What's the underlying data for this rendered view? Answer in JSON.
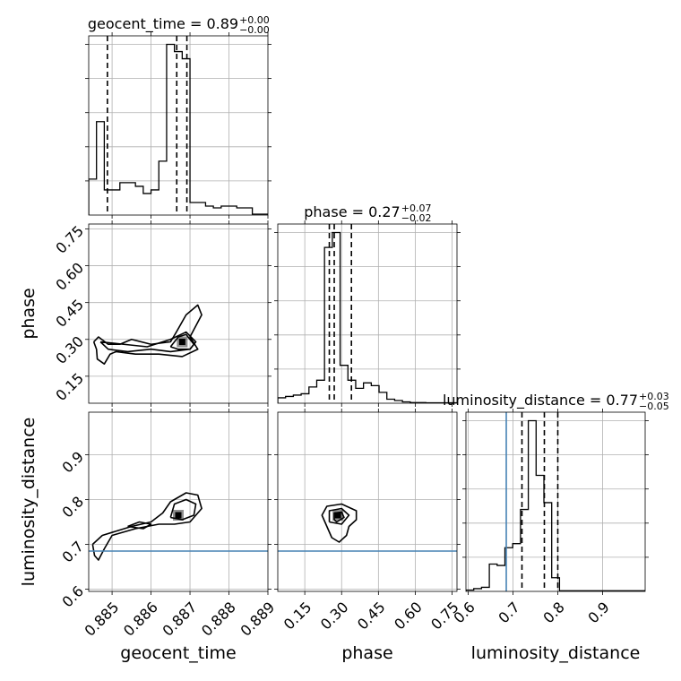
{
  "chart_data": {
    "type": "corner",
    "parameters": [
      "geocent_time",
      "phase",
      "luminosity_distance"
    ],
    "axis_labels": {
      "geocent_time": "geocent_time",
      "phase": "phase",
      "luminosity_distance": "luminosity_distance"
    },
    "ranges": {
      "geocent_time": [
        0.8844,
        0.889
      ],
      "phase": [
        0.04,
        0.77
      ],
      "luminosity_distance": [
        0.595,
        0.995
      ]
    },
    "ticks": {
      "geocent_time": {
        "values": [
          0.885,
          0.886,
          0.887,
          0.888,
          0.889
        ],
        "labels": [
          "0.885",
          "0.886",
          "0.887",
          "0.888",
          "0.889"
        ]
      },
      "phase": {
        "values": [
          0.15,
          0.3,
          0.45,
          0.6,
          0.75
        ],
        "labels": [
          "0.15",
          "0.30",
          "0.45",
          "0.60",
          "0.75"
        ]
      },
      "luminosity_distance": {
        "values": [
          0.6,
          0.7,
          0.8,
          0.9
        ],
        "labels": [
          "0.6",
          "0.7",
          "0.8",
          "0.9"
        ]
      }
    },
    "titles": [
      {
        "param": "geocent_time",
        "text": "geocent_time = 0.89",
        "upper": "+0.00",
        "lower": "−0.00"
      },
      {
        "param": "phase",
        "text": "phase = 0.27",
        "upper": "+0.07",
        "lower": "−0.02"
      },
      {
        "param": "luminosity_distance",
        "text": "luminosity_distance = 0.77",
        "upper": "+0.03",
        "lower": "−0.05"
      }
    ],
    "histograms": {
      "geocent_time": {
        "edges": [
          0.8844,
          0.8846,
          0.8848,
          0.885,
          0.8852,
          0.8854,
          0.8856,
          0.8858,
          0.886,
          0.8862,
          0.8864,
          0.8866,
          0.8868,
          0.887,
          0.8872,
          0.8874,
          0.8876,
          0.8878,
          0.888,
          0.8882,
          0.8884,
          0.8886,
          0.8888,
          0.889
        ],
        "counts": [
          20,
          52,
          14,
          14,
          18,
          18,
          16,
          12,
          14,
          30,
          95,
          91,
          87,
          7,
          7,
          5,
          4,
          5,
          5,
          4,
          4,
          0.5,
          0.5
        ]
      },
      "phase": {
        "edges": [
          0.04,
          0.0717,
          0.1035,
          0.1352,
          0.167,
          0.1987,
          0.2304,
          0.2622,
          0.2939,
          0.3257,
          0.3574,
          0.3891,
          0.4209,
          0.4526,
          0.4843,
          0.5161,
          0.5478,
          0.5796,
          0.6113,
          0.643,
          0.6748,
          0.7065,
          0.7383,
          0.77
        ],
        "counts": [
          4,
          5,
          6,
          7,
          12,
          17,
          115,
          126,
          28,
          17,
          11,
          15,
          13,
          8,
          3,
          2,
          1,
          0.5,
          0.5,
          0.3,
          0.3,
          0.3,
          0.3
        ]
      },
      "luminosity_distance": {
        "edges": [
          0.595,
          0.6124,
          0.6298,
          0.6472,
          0.6646,
          0.682,
          0.6994,
          0.7168,
          0.7342,
          0.7516,
          0.769,
          0.7864,
          0.8038,
          0.8212,
          0.8386,
          0.856,
          0.8734,
          0.8908,
          0.9082,
          0.9256,
          0.943,
          0.9604,
          0.9778,
          0.995
        ],
        "counts": [
          1,
          2,
          3,
          20,
          19,
          32,
          35,
          60,
          125,
          85,
          65,
          10,
          0.5,
          0.5,
          0.5,
          0.5,
          0.5,
          0.5,
          0.5,
          0.5,
          0.5,
          0.5,
          0.5
        ]
      }
    },
    "quantiles": {
      "geocent_time": [
        0.88488,
        0.88666,
        0.88692
      ],
      "phase": [
        0.25,
        0.27,
        0.34
      ],
      "luminosity_distance": [
        0.72,
        0.77,
        0.8
      ]
    },
    "truths": {
      "luminosity_distance": 0.685
    },
    "truth_color": "#4682b4",
    "line_color": "#000000",
    "grid": true,
    "contours": {
      "phase|geocent_time": [
        [
          [
            0.88453,
            0.29
          ],
          [
            0.88465,
            0.31
          ],
          [
            0.8849,
            0.28
          ],
          [
            0.8852,
            0.28
          ],
          [
            0.8855,
            0.3
          ],
          [
            0.886,
            0.28
          ],
          [
            0.8865,
            0.29
          ],
          [
            0.88665,
            0.33
          ],
          [
            0.8869,
            0.4
          ],
          [
            0.8872,
            0.44
          ],
          [
            0.8873,
            0.4
          ],
          [
            0.887,
            0.31
          ],
          [
            0.8872,
            0.26
          ],
          [
            0.8868,
            0.23
          ],
          [
            0.8862,
            0.24
          ],
          [
            0.8856,
            0.24
          ],
          [
            0.8851,
            0.25
          ],
          [
            0.88495,
            0.24
          ],
          [
            0.8848,
            0.2
          ],
          [
            0.88462,
            0.22
          ],
          [
            0.8846,
            0.26
          ],
          [
            0.88453,
            0.29
          ]
        ],
        [
          [
            0.8847,
            0.29
          ],
          [
            0.8849,
            0.26
          ],
          [
            0.8854,
            0.25
          ],
          [
            0.886,
            0.26
          ],
          [
            0.8865,
            0.25
          ],
          [
            0.887,
            0.26
          ],
          [
            0.88715,
            0.29
          ],
          [
            0.8869,
            0.33
          ],
          [
            0.8865,
            0.3
          ],
          [
            0.8859,
            0.27
          ],
          [
            0.8853,
            0.28
          ],
          [
            0.8847,
            0.29
          ]
        ],
        [
          [
            0.8865,
            0.27
          ],
          [
            0.8867,
            0.31
          ],
          [
            0.8869,
            0.32
          ],
          [
            0.8871,
            0.28
          ],
          [
            0.887,
            0.26
          ],
          [
            0.8867,
            0.26
          ],
          [
            0.8865,
            0.27
          ]
        ]
      ],
      "luminosity_distance|geocent_time": [
        [
          [
            0.8845,
            0.7
          ],
          [
            0.88475,
            0.72
          ],
          [
            0.8855,
            0.74
          ],
          [
            0.886,
            0.75
          ],
          [
            0.8863,
            0.77
          ],
          [
            0.8865,
            0.795
          ],
          [
            0.8869,
            0.815
          ],
          [
            0.8872,
            0.81
          ],
          [
            0.8873,
            0.78
          ],
          [
            0.887,
            0.75
          ],
          [
            0.8866,
            0.745
          ],
          [
            0.8862,
            0.745
          ],
          [
            0.8856,
            0.735
          ],
          [
            0.885,
            0.72
          ],
          [
            0.8848,
            0.69
          ],
          [
            0.88465,
            0.665
          ],
          [
            0.88455,
            0.675
          ],
          [
            0.8845,
            0.7
          ]
        ],
        [
          [
            0.8854,
            0.74
          ],
          [
            0.8857,
            0.75
          ],
          [
            0.886,
            0.745
          ],
          [
            0.8858,
            0.735
          ],
          [
            0.8854,
            0.74
          ]
        ],
        [
          [
            0.8865,
            0.76
          ],
          [
            0.8866,
            0.79
          ],
          [
            0.8869,
            0.8
          ],
          [
            0.88715,
            0.79
          ],
          [
            0.8871,
            0.765
          ],
          [
            0.8868,
            0.755
          ],
          [
            0.8865,
            0.76
          ]
        ]
      ],
      "luminosity_distance|phase": [
        [
          [
            0.24,
            0.74
          ],
          [
            0.22,
            0.765
          ],
          [
            0.24,
            0.785
          ],
          [
            0.3,
            0.79
          ],
          [
            0.36,
            0.775
          ],
          [
            0.36,
            0.755
          ],
          [
            0.33,
            0.74
          ],
          [
            0.32,
            0.72
          ],
          [
            0.29,
            0.705
          ],
          [
            0.26,
            0.715
          ],
          [
            0.24,
            0.74
          ]
        ],
        [
          [
            0.25,
            0.75
          ],
          [
            0.25,
            0.775
          ],
          [
            0.3,
            0.78
          ],
          [
            0.33,
            0.765
          ],
          [
            0.3,
            0.745
          ],
          [
            0.25,
            0.75
          ]
        ],
        [
          [
            0.27,
            0.755
          ],
          [
            0.27,
            0.77
          ],
          [
            0.3,
            0.772
          ],
          [
            0.31,
            0.76
          ],
          [
            0.28,
            0.75
          ],
          [
            0.27,
            0.755
          ]
        ]
      ]
    },
    "density_peaks": {
      "phase|geocent_time": [
        [
          0.8868,
          0.29
        ]
      ],
      "luminosity_distance|geocent_time": [
        [
          0.8867,
          0.765
        ]
      ],
      "luminosity_distance|phase": [
        [
          0.285,
          0.765
        ]
      ]
    }
  }
}
